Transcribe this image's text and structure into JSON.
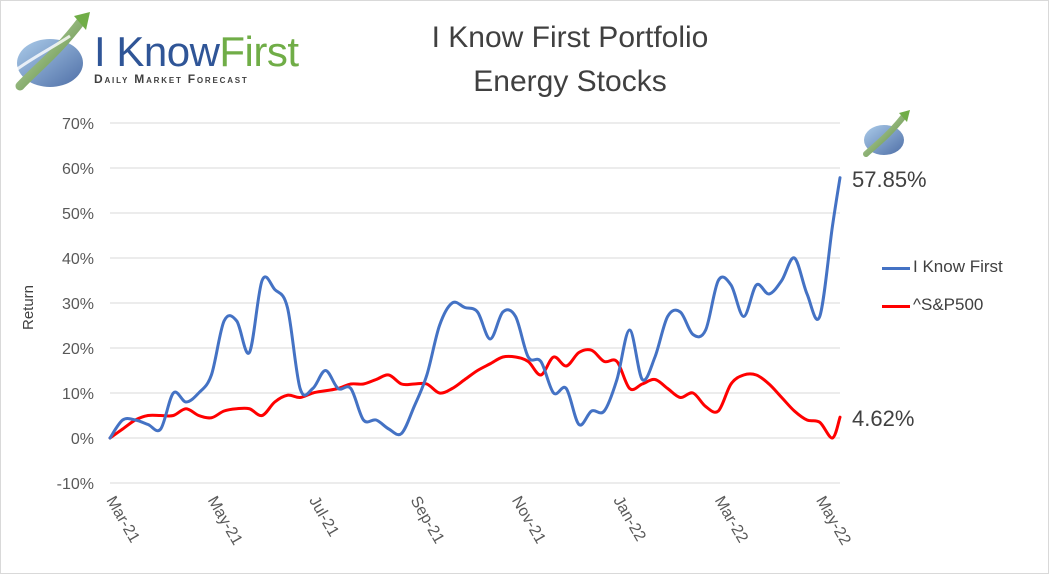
{
  "logo": {
    "word_part1": "I Know",
    "word_part2": "First",
    "tagline": "Daily Market Forecast"
  },
  "title_line1": "I Know First Portfolio",
  "title_line2": "Energy Stocks",
  "colors": {
    "series_ikf": "#4472c4",
    "series_sp": "#ff0000",
    "grid": "#d9d9d9",
    "text": "#595959",
    "logo_blue": "#2f5597",
    "logo_green": "#70ad47"
  },
  "end_labels": {
    "ikf": "57.85%",
    "sp": "4.62%"
  },
  "chart_data": {
    "type": "line",
    "title": "I Know First Portfolio Energy Stocks",
    "ylabel": "Return",
    "xlabel": "",
    "ylim": [
      -0.1,
      0.7
    ],
    "yticks": [
      -0.1,
      0,
      0.1,
      0.2,
      0.3,
      0.4,
      0.5,
      0.6,
      0.7
    ],
    "ytick_labels": [
      "-10%",
      "0%",
      "10%",
      "20%",
      "30%",
      "40%",
      "50%",
      "60%",
      "70%"
    ],
    "xlim": [
      0,
      14.4
    ],
    "x_tick_positions": [
      0,
      2,
      4,
      6,
      8,
      10,
      12,
      14
    ],
    "x_tick_labels": [
      "Mar-21",
      "May-21",
      "Jul-21",
      "Sep-21",
      "Nov-21",
      "Jan-22",
      "Mar-22",
      "May-22"
    ],
    "grid": true,
    "legend_position": "right",
    "series": [
      {
        "name": "I Know First",
        "x": [
          0,
          0.25,
          0.5,
          0.75,
          1.0,
          1.25,
          1.5,
          1.75,
          2.0,
          2.25,
          2.5,
          2.75,
          3.0,
          3.25,
          3.5,
          3.75,
          4.0,
          4.25,
          4.5,
          4.75,
          5.0,
          5.25,
          5.5,
          5.75,
          6.0,
          6.25,
          6.5,
          6.75,
          7.0,
          7.25,
          7.5,
          7.75,
          8.0,
          8.25,
          8.5,
          8.75,
          9.0,
          9.25,
          9.5,
          9.75,
          10.0,
          10.25,
          10.5,
          10.75,
          11.0,
          11.25,
          11.5,
          11.75,
          12.0,
          12.25,
          12.5,
          12.75,
          13.0,
          13.25,
          13.5,
          13.75,
          14.0,
          14.25,
          14.4
        ],
        "values": [
          0.0,
          0.04,
          0.04,
          0.03,
          0.02,
          0.1,
          0.08,
          0.1,
          0.14,
          0.26,
          0.26,
          0.19,
          0.35,
          0.33,
          0.29,
          0.11,
          0.11,
          0.15,
          0.11,
          0.11,
          0.04,
          0.04,
          0.02,
          0.01,
          0.07,
          0.14,
          0.25,
          0.3,
          0.29,
          0.28,
          0.22,
          0.28,
          0.27,
          0.18,
          0.17,
          0.1,
          0.11,
          0.03,
          0.06,
          0.06,
          0.13,
          0.24,
          0.13,
          0.18,
          0.27,
          0.28,
          0.23,
          0.24,
          0.35,
          0.34,
          0.27,
          0.34,
          0.32,
          0.35,
          0.4,
          0.32,
          0.27,
          0.47,
          0.5785
        ]
      },
      {
        "name": "^S&P500",
        "x": [
          0,
          0.25,
          0.5,
          0.75,
          1.0,
          1.25,
          1.5,
          1.75,
          2.0,
          2.25,
          2.5,
          2.75,
          3.0,
          3.25,
          3.5,
          3.75,
          4.0,
          4.25,
          4.5,
          4.75,
          5.0,
          5.25,
          5.5,
          5.75,
          6.0,
          6.25,
          6.5,
          6.75,
          7.0,
          7.25,
          7.5,
          7.75,
          8.0,
          8.25,
          8.5,
          8.75,
          9.0,
          9.25,
          9.5,
          9.75,
          10.0,
          10.25,
          10.5,
          10.75,
          11.0,
          11.25,
          11.5,
          11.75,
          12.0,
          12.25,
          12.5,
          12.75,
          13.0,
          13.25,
          13.5,
          13.75,
          14.0,
          14.25,
          14.4
        ],
        "values": [
          0.0,
          0.02,
          0.04,
          0.05,
          0.05,
          0.05,
          0.065,
          0.05,
          0.045,
          0.06,
          0.065,
          0.065,
          0.05,
          0.08,
          0.095,
          0.09,
          0.1,
          0.105,
          0.11,
          0.12,
          0.12,
          0.13,
          0.14,
          0.12,
          0.12,
          0.12,
          0.1,
          0.11,
          0.13,
          0.15,
          0.165,
          0.18,
          0.18,
          0.17,
          0.14,
          0.18,
          0.16,
          0.19,
          0.195,
          0.17,
          0.17,
          0.11,
          0.12,
          0.13,
          0.11,
          0.09,
          0.1,
          0.07,
          0.06,
          0.12,
          0.14,
          0.14,
          0.12,
          0.09,
          0.06,
          0.04,
          0.035,
          0.0,
          0.0462
        ]
      }
    ]
  }
}
